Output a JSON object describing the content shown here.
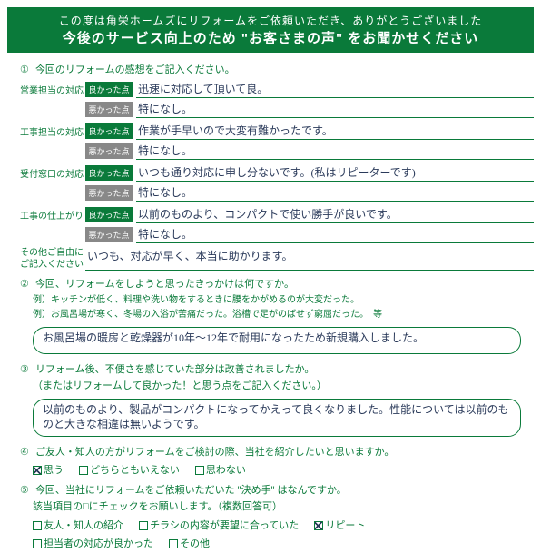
{
  "header": {
    "line1": "この度は角栄ホームズにリフォームをご依頼いただき、ありがとうございました",
    "line2": "今後のサービス向上のため \"お客さまの声\" をお聞かせください"
  },
  "q1": {
    "num": "①",
    "text": "今回のリフォームの感想をご記入ください。",
    "rows": [
      {
        "label": "営業担当の対応",
        "good_tag": "良かった点",
        "good": "迅速に対応して頂いて良。",
        "bad_tag": "悪かった点",
        "bad": "特になし。"
      },
      {
        "label": "工事担当の対応",
        "good_tag": "良かった点",
        "good": "作業が手早いので大変有難かったです。",
        "bad_tag": "悪かった点",
        "bad": "特になし。"
      },
      {
        "label": "受付窓口の対応",
        "good_tag": "良かった点",
        "good": "いつも通り対応に申し分ないです。(私はリピーターです)",
        "bad_tag": "悪かった点",
        "bad": "特になし。"
      },
      {
        "label": "工事の仕上がり",
        "good_tag": "良かった点",
        "good": "以前のものより、コンパクトで使い勝手が良いです。",
        "bad_tag": "悪かった点",
        "bad": "特になし。"
      }
    ],
    "free_label": "その他ご自由にご記入ください",
    "free_text": "いつも、対応が早く、本当に助かります。"
  },
  "q2": {
    "num": "②",
    "text": "今回、リフォームをしようと思ったきっかけは何ですか。",
    "ex1": "例）キッチンが低く、料理や洗い物をするときに腰をかがめるのが大変だった。",
    "ex2": "例）お風呂場が寒く、冬場の入浴が苦痛だった。浴槽で足がのばせず窮屈だった。　等",
    "answer": "お風呂場の暖房と乾燥器が10年〜12年で耐用になったため新規購入しました。"
  },
  "q3": {
    "num": "③",
    "text": "リフォーム後、不便さを感じていた部分は改善されましたか。",
    "text2": "（またはリフォームして良かった！と思う点をご記入ください。）",
    "answer": "以前のものより、製品がコンパクトになってかえって良くなりました。性能については以前のものと大きな相違は無いようです。"
  },
  "q4": {
    "num": "④",
    "text": "ご友人・知人の方がリフォームをご検討の際、当社を紹介したいと思いますか。",
    "options": [
      {
        "label": "思う",
        "checked": true
      },
      {
        "label": "どちらともいえない",
        "checked": false
      },
      {
        "label": "思わない",
        "checked": false
      }
    ]
  },
  "q5": {
    "num": "⑤",
    "text": "今回、当社にリフォームをご依頼いただいた \"決め手\" はなんですか。",
    "text2": "該当項目の□にチェックをお願いします。（複数回答可）",
    "options_row1": [
      {
        "label": "友人・知人の紹介",
        "checked": false
      },
      {
        "label": "チラシの内容が要望に合っていた",
        "checked": false
      },
      {
        "label": "リピート",
        "checked": true
      }
    ],
    "options_row2": [
      {
        "label": "担当者の対応が良かった",
        "checked": false
      },
      {
        "label": "その他",
        "checked": false
      }
    ]
  },
  "colors": {
    "green": "#0a7a3a",
    "gray": "#888888",
    "ink": "#2a3a5a",
    "white": "#ffffff"
  }
}
